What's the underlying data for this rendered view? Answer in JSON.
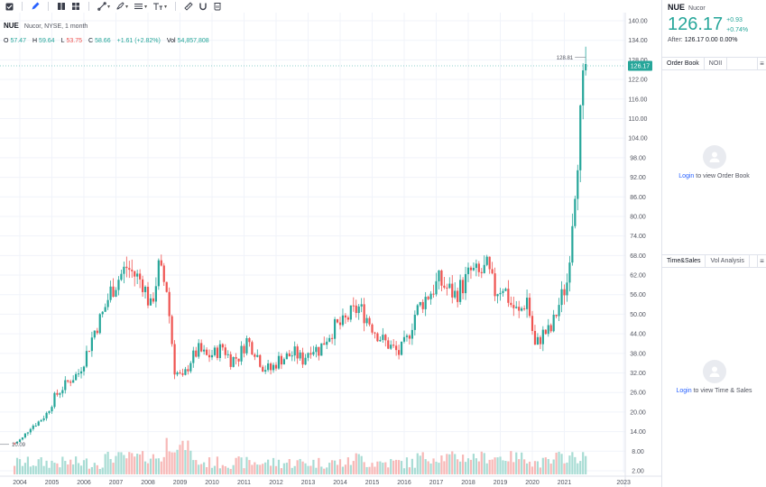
{
  "toolbar": {
    "buttons": [
      {
        "name": "checkbox-tool-icon"
      },
      {
        "name": "pencil-tool-icon"
      },
      {
        "name": "templates-icon"
      },
      {
        "name": "layout-grid-icon"
      },
      {
        "name": "trend-line-tool-icon"
      },
      {
        "name": "brush-tool-icon"
      },
      {
        "name": "lines-tool-icon"
      },
      {
        "name": "text-tool-icon"
      },
      {
        "name": "ruler-icon"
      },
      {
        "name": "magnet-icon"
      },
      {
        "name": "trash-icon"
      }
    ]
  },
  "legend": {
    "symbol": "NUE",
    "description": "Nucor, NYSE, 1 month",
    "o_label": "O",
    "o_value": "57.47",
    "h_label": "H",
    "h_value": "59.64",
    "l_label": "L",
    "l_value": "53.75",
    "c_label": "C",
    "c_value": "58.66",
    "change": "+1.61 (+2.82%)",
    "vol_label": "Vol",
    "vol_value": "54,857,808"
  },
  "chart_data": {
    "type": "candlestick",
    "price_axis_ticks": [
      "140.00",
      "134.00",
      "128.00",
      "122.00",
      "116.00",
      "110.00",
      "104.00",
      "98.00",
      "92.00",
      "86.00",
      "80.00",
      "74.00",
      "68.00",
      "62.00",
      "56.00",
      "50.00",
      "44.00",
      "38.00",
      "32.00",
      "26.00",
      "20.00",
      "14.00",
      "8.00",
      "2.00"
    ],
    "time_axis_ticks": [
      "2004",
      "2005",
      "2006",
      "2007",
      "2008",
      "2009",
      "2010",
      "2011",
      "2012",
      "2013",
      "2014",
      "2015",
      "2016",
      "2017",
      "2018",
      "2019",
      "2020",
      "2021",
      "2023"
    ],
    "ylim": [
      2,
      140
    ],
    "last_price_label": "126.17",
    "high_marker_label": "128.81",
    "low_marker_label": "10.09",
    "colors": {
      "up": "#26a69a",
      "down": "#ef5350",
      "vol_up": "#a8dcd4",
      "vol_down": "#f7b8b7",
      "grid": "#f0f3fa",
      "axis_text": "#50535e"
    },
    "close_path": [
      [
        "2003-11",
        10.4
      ],
      [
        "2004-02",
        12.0
      ],
      [
        "2004-05",
        15.5
      ],
      [
        "2004-08",
        17.0
      ],
      [
        "2004-11",
        19.5
      ],
      [
        "2005-02",
        24.5
      ],
      [
        "2005-05",
        27.5
      ],
      [
        "2005-08",
        30.0
      ],
      [
        "2005-11",
        32.0
      ],
      [
        "2006-02",
        38.0
      ],
      [
        "2006-05",
        45.0
      ],
      [
        "2006-08",
        50.0
      ],
      [
        "2006-11",
        57.0
      ],
      [
        "2007-02",
        61.0
      ],
      [
        "2007-05",
        64.5
      ],
      [
        "2007-08",
        62.0
      ],
      [
        "2007-11",
        60.0
      ],
      [
        "2008-02",
        52.0
      ],
      [
        "2008-05",
        64.0
      ],
      [
        "2008-08",
        58.0
      ],
      [
        "2008-11",
        33.0
      ],
      [
        "2009-02",
        30.0
      ],
      [
        "2009-05",
        36.0
      ],
      [
        "2009-08",
        39.0
      ],
      [
        "2009-11",
        37.0
      ],
      [
        "2010-02",
        38.0
      ],
      [
        "2010-05",
        40.0
      ],
      [
        "2010-08",
        36.0
      ],
      [
        "2010-11",
        37.0
      ],
      [
        "2011-02",
        42.0
      ],
      [
        "2011-05",
        39.0
      ],
      [
        "2011-08",
        34.0
      ],
      [
        "2011-11",
        33.0
      ],
      [
        "2012-02",
        36.0
      ],
      [
        "2012-05",
        37.0
      ],
      [
        "2012-08",
        38.0
      ],
      [
        "2012-11",
        36.0
      ],
      [
        "2013-02",
        40.0
      ],
      [
        "2013-05",
        39.0
      ],
      [
        "2013-08",
        43.0
      ],
      [
        "2013-11",
        46.0
      ],
      [
        "2014-02",
        47.0
      ],
      [
        "2014-05",
        50.0
      ],
      [
        "2014-08",
        52.0
      ],
      [
        "2014-11",
        49.0
      ],
      [
        "2015-02",
        45.0
      ],
      [
        "2015-05",
        42.0
      ],
      [
        "2015-08",
        40.0
      ],
      [
        "2015-11",
        38.0
      ],
      [
        "2016-02",
        42.0
      ],
      [
        "2016-05",
        50.0
      ],
      [
        "2016-08",
        54.0
      ],
      [
        "2016-11",
        57.0
      ],
      [
        "2017-02",
        60.0
      ],
      [
        "2017-05",
        58.0
      ],
      [
        "2017-08",
        56.0
      ],
      [
        "2017-11",
        59.0
      ],
      [
        "2018-02",
        63.0
      ],
      [
        "2018-05",
        62.0
      ],
      [
        "2018-08",
        64.0
      ],
      [
        "2018-11",
        57.0
      ],
      [
        "2019-02",
        59.0
      ],
      [
        "2019-05",
        53.0
      ],
      [
        "2019-08",
        50.0
      ],
      [
        "2019-11",
        55.0
      ],
      [
        "2020-02",
        40.0
      ],
      [
        "2020-05",
        44.0
      ],
      [
        "2020-08",
        45.0
      ],
      [
        "2020-11",
        53.0
      ],
      [
        "2021-02",
        60.0
      ],
      [
        "2021-04",
        80.0
      ],
      [
        "2021-06",
        100.0
      ],
      [
        "2021-08",
        118.0
      ],
      [
        "2021-09",
        126.17
      ]
    ]
  },
  "side": {
    "symbol": "NUE",
    "name": "Nucor",
    "price": "126.17",
    "change_abs": "+0.93",
    "change_pct": "+0.74%",
    "after_label": "After:",
    "after_value": "126.17 0.00 0.00%",
    "orderbook_tabs": [
      "Order Book",
      "NOII"
    ],
    "orderbook_login": "Login",
    "orderbook_text": "to view Order Book",
    "ts_tabs": [
      "Time&Sales",
      "Vol Analysis"
    ],
    "ts_login": "Login",
    "ts_text": "to view Time & Sales"
  }
}
